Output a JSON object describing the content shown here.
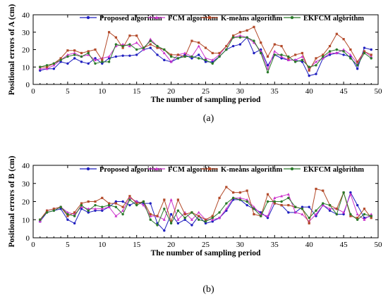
{
  "chart_data": [
    {
      "type": "line",
      "panel_caption": "(a)",
      "xlabel": "The number of sampling period",
      "ylabel": "Positional errors of A (cm)",
      "xlim": [
        0,
        50
      ],
      "ylim": [
        0,
        40
      ],
      "xticks": [
        0,
        5,
        10,
        15,
        20,
        25,
        30,
        35,
        40,
        45,
        50
      ],
      "yticks": [
        0,
        10,
        20,
        30,
        40
      ],
      "grid": false,
      "legend_position": "top",
      "x": [
        1,
        2,
        3,
        4,
        5,
        6,
        7,
        8,
        9,
        10,
        11,
        12,
        13,
        14,
        15,
        16,
        17,
        18,
        19,
        20,
        21,
        22,
        23,
        24,
        25,
        26,
        27,
        28,
        29,
        30,
        31,
        32,
        33,
        34,
        35,
        36,
        37,
        38,
        39,
        40,
        41,
        42,
        43,
        44,
        45,
        46,
        47,
        48,
        49
      ],
      "series": [
        {
          "name": "Proposed algorithm",
          "color": "#1f1fbf",
          "marker": "circle",
          "values": [
            8,
            9,
            9,
            13,
            12,
            15,
            13,
            12,
            15,
            12,
            15,
            16,
            16.5,
            16.5,
            17,
            20,
            21,
            17,
            14,
            13,
            15,
            17,
            15,
            17,
            13,
            13,
            16,
            20,
            22,
            23,
            27,
            18,
            20,
            11,
            17,
            15,
            14,
            14,
            13,
            5,
            6,
            15,
            17,
            18,
            17,
            16,
            9,
            21,
            20
          ]
        },
        {
          "name": "FCM algorithm",
          "color": "#cc33cc",
          "marker": "triangle",
          "values": [
            9,
            9,
            11,
            14,
            17,
            18,
            16,
            17,
            14,
            15,
            16,
            22,
            23,
            22,
            24,
            20,
            26,
            22,
            18,
            13,
            17,
            18,
            16,
            22,
            15,
            14,
            17,
            22,
            27,
            28,
            27,
            24,
            19,
            9,
            19,
            16,
            14,
            14,
            16,
            9,
            13,
            15,
            18,
            18,
            20,
            17,
            12,
            19,
            16
          ]
        },
        {
          "name": "K-means algorithm",
          "color": "#b34a2a",
          "marker": "square",
          "values": [
            10,
            10,
            12,
            15,
            19.5,
            19.5,
            18,
            19,
            20,
            14,
            30,
            27,
            21,
            28,
            28,
            21,
            23,
            21,
            20,
            17,
            17,
            16,
            25,
            24,
            21,
            18,
            18,
            22,
            28,
            30,
            31,
            33,
            24,
            16,
            23,
            22,
            15,
            17,
            18,
            8,
            15,
            17,
            22,
            29,
            26,
            20,
            13,
            19,
            17
          ]
        },
        {
          "name": "EKFCM algorithm",
          "color": "#2a7a2a",
          "marker": "circle",
          "values": [
            10,
            11,
            12,
            14,
            16,
            17,
            16,
            18,
            12,
            13,
            13,
            23,
            22,
            23,
            20,
            21,
            25,
            22,
            20,
            16,
            15,
            16,
            16,
            15,
            14,
            12,
            16,
            20,
            27,
            27,
            27,
            25,
            18,
            7,
            17,
            17,
            16,
            13,
            14,
            10,
            11,
            16,
            19,
            20,
            19,
            15,
            11,
            18,
            15
          ]
        }
      ]
    },
    {
      "type": "line",
      "panel_caption": "(b)",
      "xlabel": "The number of sampling period",
      "ylabel": "Positional errors of B (cm)",
      "xlim": [
        0,
        50
      ],
      "ylim": [
        0,
        40
      ],
      "xticks": [
        0,
        5,
        10,
        15,
        20,
        25,
        30,
        35,
        40,
        45,
        50
      ],
      "yticks": [
        0,
        10,
        20,
        30,
        40
      ],
      "grid": false,
      "legend_position": "top",
      "x": [
        1,
        2,
        3,
        4,
        5,
        6,
        7,
        8,
        9,
        10,
        11,
        12,
        13,
        14,
        15,
        16,
        17,
        18,
        19,
        20,
        21,
        22,
        23,
        24,
        25,
        26,
        27,
        28,
        29,
        30,
        31,
        32,
        33,
        34,
        35,
        36,
        37,
        38,
        39,
        40,
        41,
        42,
        43,
        44,
        45,
        46,
        47,
        48,
        49
      ],
      "series": [
        {
          "name": "Proposed algorithm",
          "color": "#1f1fbf",
          "marker": "circle",
          "values": [
            9,
            14,
            15,
            16,
            10,
            8,
            16,
            14,
            15,
            15,
            17,
            20,
            20,
            18,
            20,
            19,
            19,
            8,
            4,
            13,
            8,
            10,
            7,
            12,
            8,
            9,
            11,
            15,
            21,
            21,
            18,
            16,
            14,
            11,
            19,
            18,
            14,
            14,
            17,
            17,
            12,
            18,
            15,
            13,
            13,
            25,
            18,
            11,
            12
          ]
        },
        {
          "name": "FCM algorithm",
          "color": "#cc33cc",
          "marker": "triangle",
          "values": [
            9,
            15,
            16,
            17,
            14,
            13,
            17,
            16,
            16,
            16,
            17,
            12,
            15,
            22,
            20,
            18,
            12,
            12,
            10,
            21,
            10,
            14,
            10,
            14,
            10,
            10,
            11,
            16,
            22,
            22,
            21,
            17,
            13,
            12,
            22,
            23,
            24,
            14,
            13,
            9,
            13,
            18,
            16,
            16,
            14,
            24,
            13,
            10,
            13
          ]
        },
        {
          "name": "K-means algorithm",
          "color": "#b34a2a",
          "marker": "square",
          "values": [
            10,
            15,
            16,
            17,
            12,
            14,
            19,
            20,
            20,
            22,
            19,
            19,
            17,
            23,
            19,
            20,
            13,
            12,
            21,
            9,
            21,
            13,
            14,
            12,
            10,
            12,
            22,
            28,
            25,
            25,
            26,
            13,
            12,
            24,
            19,
            18,
            18,
            17,
            16,
            8,
            27,
            26,
            18,
            16,
            25,
            12,
            11,
            16,
            11
          ]
        },
        {
          "name": "EKFCM algorithm",
          "color": "#2a7a2a",
          "marker": "circle",
          "values": [
            10,
            14,
            15,
            17,
            13,
            12,
            18,
            15,
            18,
            17,
            18,
            17,
            13,
            21,
            18,
            20,
            10,
            7,
            16,
            8,
            15,
            11,
            14,
            10,
            9,
            11,
            14,
            19,
            22,
            21,
            20,
            16,
            12,
            20,
            20,
            20,
            22,
            17,
            16,
            11,
            15,
            19,
            18,
            13,
            25,
            13,
            10,
            13,
            12
          ]
        }
      ]
    }
  ]
}
